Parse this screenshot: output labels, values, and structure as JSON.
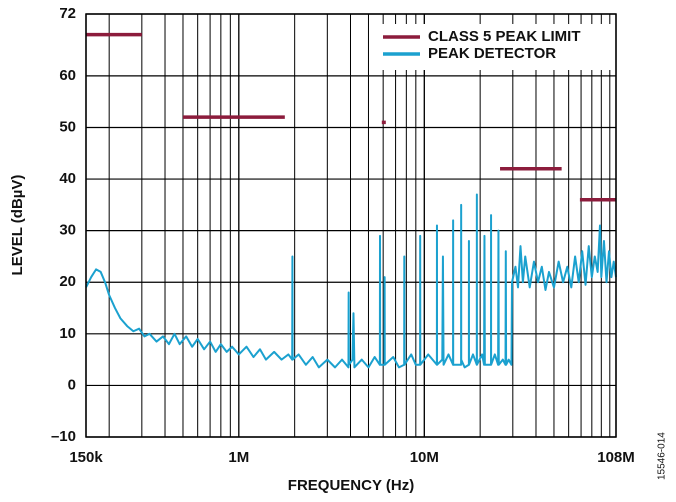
{
  "chart_data": {
    "type": "line",
    "xlabel": "FREQUENCY (Hz)",
    "ylabel": "LEVEL (dBµV)",
    "figure_id": "15546-014",
    "xscale": "log",
    "grid": true,
    "minor_grid": true,
    "legend": "upper right",
    "xlim": [
      150000,
      108000000
    ],
    "xticks": [
      {
        "value": 150000,
        "label": "150k"
      },
      {
        "value": 1000000,
        "label": "1M"
      },
      {
        "value": 10000000,
        "label": "10M"
      },
      {
        "value": 108000000,
        "label": "108M"
      }
    ],
    "ylim": [
      -10,
      72
    ],
    "yticks": [
      {
        "value": -10,
        "label": "–10"
      },
      0,
      10,
      20,
      30,
      40,
      50,
      60,
      72
    ],
    "series": [
      {
        "name": "CLASS 5 PEAK LIMIT",
        "color": "#8c1c3c",
        "width": 3.5,
        "x": [
          150000,
          300000,
          300000,
          500000,
          1770000,
          1770000,
          5900000,
          6200000,
          6200000,
          25600000,
          55000000,
          55000000,
          69000000,
          108000000
        ],
        "values": [
          68,
          68,
          null,
          52,
          52,
          null,
          51,
          51,
          null,
          42,
          42,
          null,
          36,
          36
        ]
      },
      {
        "name": "PEAK DETECTOR",
        "color": "#1ba1cf",
        "width": 2,
        "x": [
          150000,
          160000,
          170000,
          180000,
          190000,
          200000,
          215000,
          230000,
          250000,
          270000,
          290000,
          310000,
          330000,
          360000,
          390000,
          420000,
          450000,
          480000,
          520000,
          560000,
          600000,
          650000,
          700000,
          750000,
          800000,
          860000,
          920000,
          1000000,
          1100000,
          1200000,
          1300000,
          1400000,
          1550000,
          1700000,
          1850000,
          1940000,
          1945000,
          1950000,
          2100000,
          2300000,
          2500000,
          2700000,
          3000000,
          3300000,
          3600000,
          3900000,
          3910000,
          3920000,
          4100000,
          4150000,
          4200000,
          4600000,
          5000000,
          5400000,
          5760000,
          5770000,
          5780000,
          6100000,
          6110000,
          6120000,
          6800000,
          7300000,
          7790000,
          7800000,
          7810000,
          8500000,
          9000000,
          9490000,
          9500000,
          9510000,
          10500000,
          11690000,
          11700000,
          11710000,
          12500000,
          12600000,
          12700000,
          13500000,
          14290000,
          14300000,
          14310000,
          15790000,
          15800000,
          15810000,
          16500000,
          17390000,
          17400000,
          17410000,
          18300000,
          19190000,
          19200000,
          19210000,
          20500000,
          21000000,
          21100000,
          21200000,
          22890000,
          22900000,
          22910000,
          24000000,
          25000000,
          25100000,
          25200000,
          26500000,
          27400000,
          27500000,
          27600000,
          28500000,
          29500000,
          29700000,
          31000000,
          32000000,
          33000000,
          34000000,
          35000000,
          37000000,
          39000000,
          41000000,
          43000000,
          45000000,
          47000000,
          50000000,
          53000000,
          56000000,
          59000000,
          62000000,
          65000000,
          68000000,
          71000000,
          74000000,
          77000000,
          80000000,
          83000000,
          86000000,
          88500000,
          90000000,
          93000000,
          96000000,
          99000000,
          102000000,
          105000000,
          108000000
        ],
        "values": [
          19,
          21,
          22.5,
          22,
          20,
          17.5,
          15,
          13,
          11.5,
          10.5,
          11,
          9.5,
          10,
          8.5,
          9.5,
          8,
          10,
          8,
          9.5,
          7.5,
          9,
          7,
          8.5,
          6.5,
          8,
          6.5,
          7.5,
          6,
          7.5,
          5.5,
          7,
          5,
          6.5,
          5,
          6,
          5,
          25,
          5,
          6,
          4,
          5.5,
          3.5,
          5,
          3.5,
          5,
          3.5,
          18,
          4,
          5,
          14,
          3.5,
          5,
          3.5,
          5.5,
          4,
          29,
          4,
          4,
          21,
          4,
          5.5,
          3.5,
          4,
          25,
          4,
          6,
          4,
          4,
          29,
          4,
          6,
          4,
          31,
          4,
          5,
          25,
          4,
          6,
          4,
          32,
          4,
          4,
          35,
          5,
          3.5,
          4,
          28,
          4,
          6,
          4,
          37,
          4,
          6,
          4,
          29,
          4,
          4,
          33,
          4,
          6,
          4,
          30,
          4,
          5,
          4,
          26,
          4,
          5,
          4,
          20,
          23,
          19,
          27,
          20,
          25,
          19,
          24,
          20,
          23,
          18.5,
          22,
          19,
          24,
          20,
          23,
          19,
          25,
          20,
          26,
          19.5,
          27,
          21,
          25,
          22,
          31,
          21,
          28,
          20,
          26,
          21,
          24,
          21
        ]
      }
    ]
  }
}
